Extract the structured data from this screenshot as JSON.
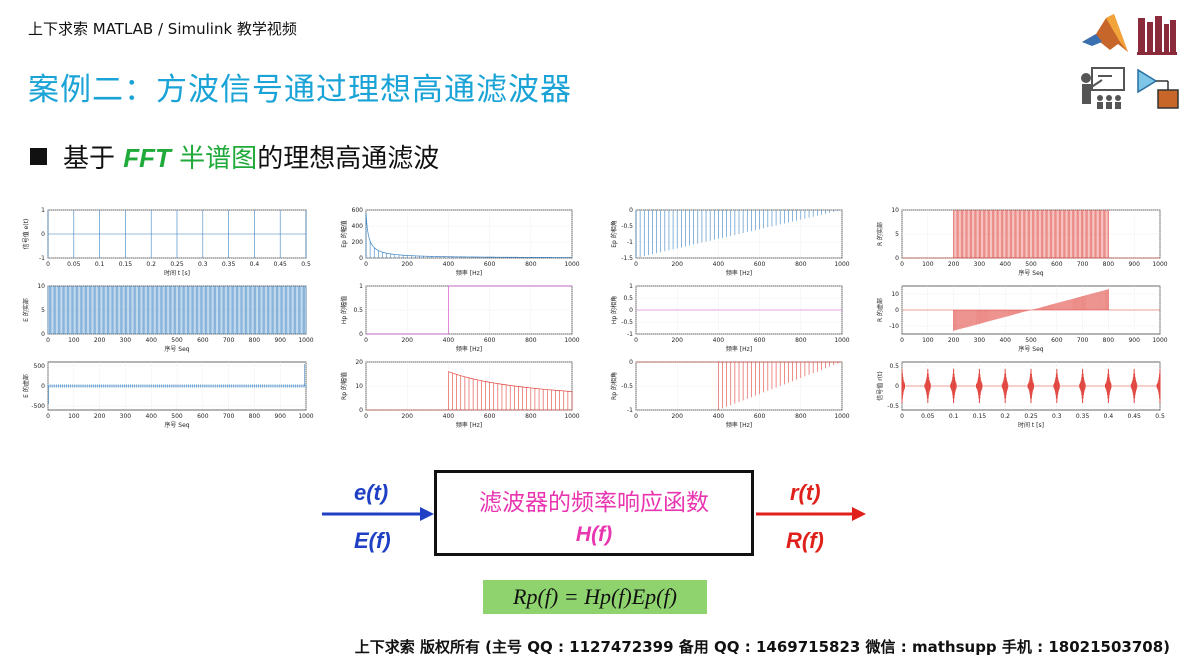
{
  "header": {
    "top_label": "上下求索 MATLAB / Simulink 教学视频",
    "title": "案例二：方波信号通过理想高通滤波器"
  },
  "bullet": {
    "prefix": "基于 ",
    "fft": "FFT",
    "mid": " 半谱图",
    "suffix": "的理想高通滤波"
  },
  "colors": {
    "title": "#1aa3d6",
    "blue_plot": "#3b84c4",
    "red_plot": "#e0423b",
    "magenta_plot": "#d35bd3",
    "green_highlight": "#8fd36f"
  },
  "icons": [
    "matlab-logo-icon",
    "books-icon",
    "teacher-icon",
    "simulink-block-icon"
  ],
  "chart_data": [
    {
      "type": "line",
      "panel": "r1c1",
      "ylabel": "信号值 e(t)",
      "xlabel": "时间 t [s]",
      "x_ticks": [
        "0",
        "0.05",
        "0.1",
        "0.15",
        "0.2",
        "0.25",
        "0.3",
        "0.35",
        "0.4",
        "0.45",
        "0.5"
      ],
      "y_ticks": [
        "1",
        "0",
        "-1"
      ],
      "xlim": [
        0,
        0.5
      ],
      "ylim": [
        -1,
        1
      ],
      "color": "blue",
      "shape": "pulses",
      "pulse_positions": [
        0,
        0.05,
        0.1,
        0.15,
        0.2,
        0.25,
        0.3,
        0.35,
        0.4,
        0.45,
        0.5
      ]
    },
    {
      "type": "line",
      "panel": "r1c2",
      "ylabel": "Ep 的幅值",
      "xlabel": "频率 [Hz]",
      "x_ticks": [
        "0",
        "200",
        "400",
        "600",
        "800",
        "1000"
      ],
      "y_ticks": [
        "600",
        "400",
        "200",
        "0"
      ],
      "xlim": [
        0,
        1000
      ],
      "ylim": [
        0,
        600
      ],
      "color": "blue",
      "shape": "decay"
    },
    {
      "type": "line",
      "panel": "r1c3",
      "ylabel": "Ep 的相角",
      "xlabel": "频率 [Hz]",
      "x_ticks": [
        "0",
        "200",
        "400",
        "600",
        "800",
        "1000"
      ],
      "y_ticks": [
        "0",
        "-0.5",
        "-1",
        "-1.5"
      ],
      "xlim": [
        0,
        1000
      ],
      "ylim": [
        -1.5,
        0
      ],
      "color": "blue",
      "shape": "phase_full"
    },
    {
      "type": "line",
      "panel": "r1c4",
      "ylabel": "R 的实部",
      "xlabel": "序号 Seq",
      "x_ticks": [
        "0",
        "100",
        "200",
        "300",
        "400",
        "500",
        "600",
        "700",
        "800",
        "900",
        "1000"
      ],
      "y_ticks": [
        "10",
        "5",
        "0"
      ],
      "xlim": [
        0,
        1000
      ],
      "ylim": [
        0,
        10
      ],
      "color": "red",
      "shape": "band_dense"
    },
    {
      "type": "line",
      "panel": "r2c1",
      "ylabel": "E 的实部",
      "xlabel": "序号 Seq",
      "x_ticks": [
        "0",
        "100",
        "200",
        "300",
        "400",
        "500",
        "600",
        "700",
        "800",
        "900",
        "1000"
      ],
      "y_ticks": [
        "10",
        "5",
        "0"
      ],
      "xlim": [
        0,
        1000
      ],
      "ylim": [
        0,
        10
      ],
      "color": "blue",
      "shape": "full_dense"
    },
    {
      "type": "line",
      "panel": "r2c2",
      "ylabel": "Hp 的幅值",
      "xlabel": "频率 [Hz]",
      "x_ticks": [
        "0",
        "200",
        "400",
        "600",
        "800",
        "1000"
      ],
      "y_ticks": [
        "1",
        "0.5",
        "0"
      ],
      "xlim": [
        0,
        1000
      ],
      "ylim": [
        0,
        1
      ],
      "color": "magenta",
      "shape": "step"
    },
    {
      "type": "line",
      "panel": "r2c3",
      "ylabel": "Hp 的相角",
      "xlabel": "频率 [Hz]",
      "x_ticks": [
        "0",
        "200",
        "400",
        "600",
        "800",
        "1000"
      ],
      "y_ticks": [
        "1",
        "0.5",
        "0",
        "-0.5",
        "-1"
      ],
      "xlim": [
        0,
        1000
      ],
      "ylim": [
        -1,
        1
      ],
      "color": "magenta",
      "shape": "flat_zero"
    },
    {
      "type": "line",
      "panel": "r2c4",
      "ylabel": "R 的虚部",
      "xlabel": "序号 Seq",
      "x_ticks": [
        "0",
        "100",
        "200",
        "300",
        "400",
        "500",
        "600",
        "700",
        "800",
        "900",
        "1000"
      ],
      "y_ticks": [
        "10",
        "0",
        "-10"
      ],
      "xlim": [
        0,
        1000
      ],
      "ylim": [
        -15,
        15
      ],
      "color": "red",
      "shape": "imag_ramp"
    },
    {
      "type": "line",
      "panel": "r3c1",
      "ylabel": "E 的虚部",
      "xlabel": "序号 Seq",
      "x_ticks": [
        "0",
        "100",
        "200",
        "300",
        "400",
        "500",
        "600",
        "700",
        "800",
        "900",
        "1000"
      ],
      "y_ticks": [
        "500",
        "0",
        "-500"
      ],
      "xlim": [
        0,
        1000
      ],
      "ylim": [
        -600,
        600
      ],
      "color": "blue",
      "shape": "edge_spikes"
    },
    {
      "type": "line",
      "panel": "r3c2",
      "ylabel": "Rp 的幅值",
      "xlabel": "频率 [Hz]",
      "x_ticks": [
        "0",
        "200",
        "400",
        "600",
        "800",
        "1000"
      ],
      "y_ticks": [
        "20",
        "10",
        "0"
      ],
      "xlim": [
        0,
        1000
      ],
      "ylim": [
        0,
        20
      ],
      "color": "red",
      "shape": "decay_from_400"
    },
    {
      "type": "line",
      "panel": "r3c3",
      "ylabel": "Rp 的相角",
      "xlabel": "频率 [Hz]",
      "x_ticks": [
        "0",
        "200",
        "400",
        "600",
        "800",
        "1000"
      ],
      "y_ticks": [
        "0",
        "-0.5",
        "-1"
      ],
      "xlim": [
        0,
        1000
      ],
      "ylim": [
        -1,
        0
      ],
      "color": "red",
      "shape": "phase_from_400"
    },
    {
      "type": "line",
      "panel": "r3c4",
      "ylabel": "信号值 r(t)",
      "xlabel": "时间 t [s]",
      "x_ticks": [
        "0",
        "0.05",
        "0.1",
        "0.15",
        "0.2",
        "0.25",
        "0.3",
        "0.35",
        "0.4",
        "0.45",
        "0.5"
      ],
      "y_ticks": [
        "0.5",
        "0",
        "-0.5"
      ],
      "xlim": [
        0,
        0.5
      ],
      "ylim": [
        -0.6,
        0.6
      ],
      "color": "red",
      "shape": "ringing"
    }
  ],
  "diagram": {
    "input_top": "e(t)",
    "input_bottom": "E(f)",
    "box_title": "滤波器的频率响应函数",
    "box_sub": "H(f)",
    "output_top": "r(t)",
    "output_bottom": "R(f)",
    "formula": "Rp(f) = Hp(f)Ep(f)"
  },
  "footer": {
    "owner": "上下求索 ",
    "text": "版权所有 (主号 QQ : 1127472399   备用 QQ : 1469715823   微信 : mathsupp   手机 : 18021503708)"
  }
}
